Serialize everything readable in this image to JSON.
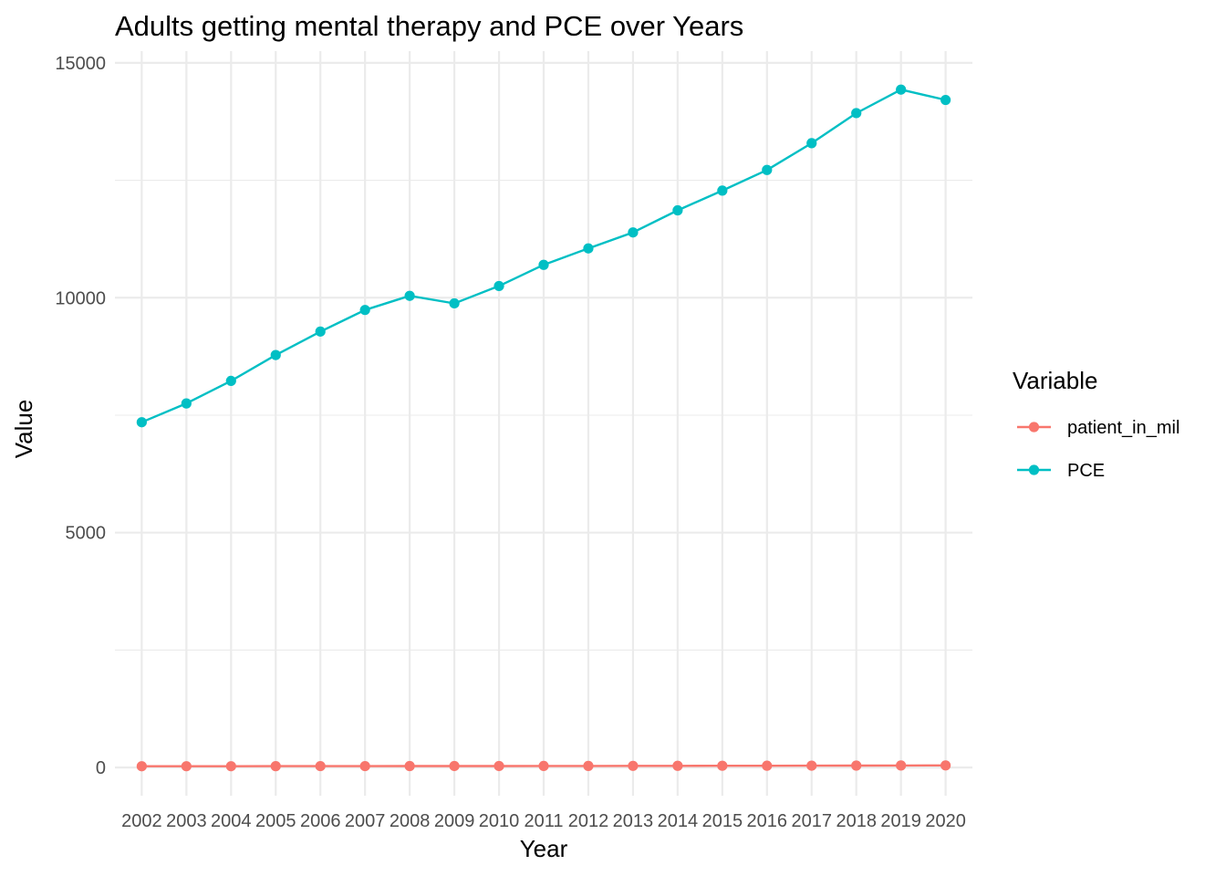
{
  "chart_data": {
    "type": "line",
    "title": "Adults getting mental therapy and PCE over Years",
    "xlabel": "Year",
    "ylabel": "Value",
    "x": [
      "2002",
      "2003",
      "2004",
      "2005",
      "2006",
      "2007",
      "2008",
      "2009",
      "2010",
      "2011",
      "2012",
      "2013",
      "2014",
      "2015",
      "2016",
      "2017",
      "2018",
      "2019",
      "2020"
    ],
    "ylim": [
      -600,
      15250
    ],
    "yticks": [
      0,
      5000,
      10000,
      15000
    ],
    "yticks_minor": [
      2500,
      7500,
      12500
    ],
    "grid": true,
    "legend": {
      "title": "Variable",
      "position": "right"
    },
    "series": [
      {
        "name": "patient_in_mil",
        "color": "#F8766D",
        "values": [
          27,
          28,
          28,
          29,
          30,
          30,
          31,
          32,
          32,
          33,
          34,
          35,
          36,
          37,
          38,
          39,
          41,
          43,
          45
        ]
      },
      {
        "name": "PCE",
        "color": "#00BFC4",
        "values": [
          7350,
          7750,
          8230,
          8780,
          9280,
          9740,
          10040,
          9880,
          10250,
          10700,
          11050,
          11390,
          11860,
          12280,
          12720,
          13290,
          13930,
          14430,
          14210
        ]
      }
    ]
  }
}
